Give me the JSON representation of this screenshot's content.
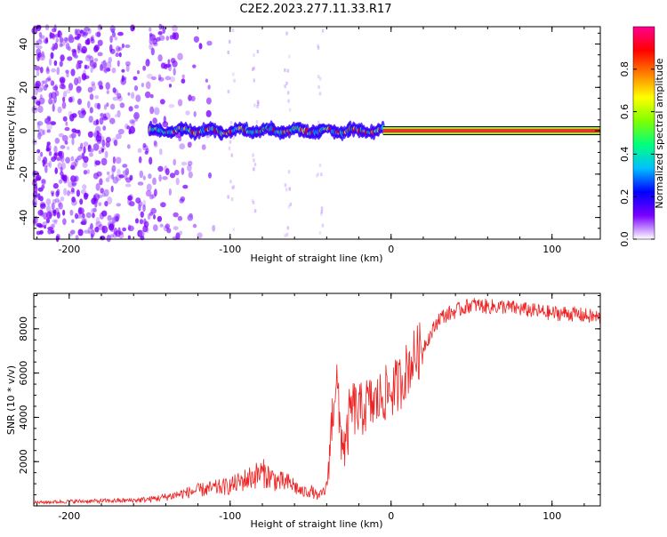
{
  "title": "C2E2.2023.277.11.33.R17",
  "chart_data": [
    {
      "type": "heatmap",
      "xlabel": "Height of straight line (km)",
      "ylabel": "Frequency (Hz)",
      "xlim": [
        -222,
        130
      ],
      "ylim": [
        -50,
        48
      ],
      "xticks": [
        -200,
        -100,
        0,
        100
      ],
      "yticks": [
        -40,
        -20,
        0,
        20,
        40
      ],
      "colorbar": {
        "label": "Normalized spectral amplitude",
        "ticks": [
          0.0,
          0.2,
          0.4,
          0.6,
          0.8
        ],
        "range": [
          0,
          1
        ],
        "colormap": [
          "#ffffff",
          "#7a00ff",
          "#0000ff",
          "#00bfff",
          "#00ff7f",
          "#7fff00",
          "#ffff00",
          "#ff7f00",
          "#ff0000",
          "#ff0090"
        ]
      },
      "line_color": "#000000",
      "features": {
        "noise_region_x": [
          -222,
          -120
        ],
        "signal_track_x": [
          -150,
          130
        ],
        "strong_signal_x": [
          -5,
          130
        ],
        "signal_frequency": 0
      }
    },
    {
      "type": "line",
      "xlabel": "Height of straight line (km)",
      "ylabel": "SNR (10 * v/v)",
      "xlim": [
        -222,
        130
      ],
      "ylim": [
        0,
        9600
      ],
      "xticks": [
        -200,
        -100,
        0,
        100
      ],
      "yticks": [
        2000,
        4000,
        6000,
        8000
      ],
      "color": "#ee2222",
      "series": [
        {
          "x": [
            -222,
            -200,
            -180,
            -160,
            -150,
            -140,
            -130,
            -120,
            -110,
            -100,
            -90,
            -80,
            -70,
            -62,
            -55,
            -50,
            -45,
            -40,
            -36,
            -34,
            -32,
            -30,
            -28,
            -26,
            -24,
            -20,
            -15,
            -10,
            -5,
            0,
            5,
            10,
            15,
            20,
            25,
            30,
            40,
            50,
            60,
            70,
            80,
            90,
            100,
            110,
            120,
            130
          ],
          "y": [
            150,
            200,
            220,
            250,
            300,
            400,
            550,
            700,
            800,
            900,
            1200,
            1500,
            1100,
            1000,
            600,
            700,
            400,
            800,
            4500,
            6000,
            3500,
            3000,
            2500,
            4000,
            4500,
            4200,
            4600,
            4600,
            5000,
            5200,
            5500,
            6200,
            6800,
            7200,
            7800,
            8500,
            8800,
            9100,
            9000,
            9000,
            8900,
            8800,
            8700,
            8700,
            8600,
            8500
          ]
        }
      ]
    }
  ]
}
